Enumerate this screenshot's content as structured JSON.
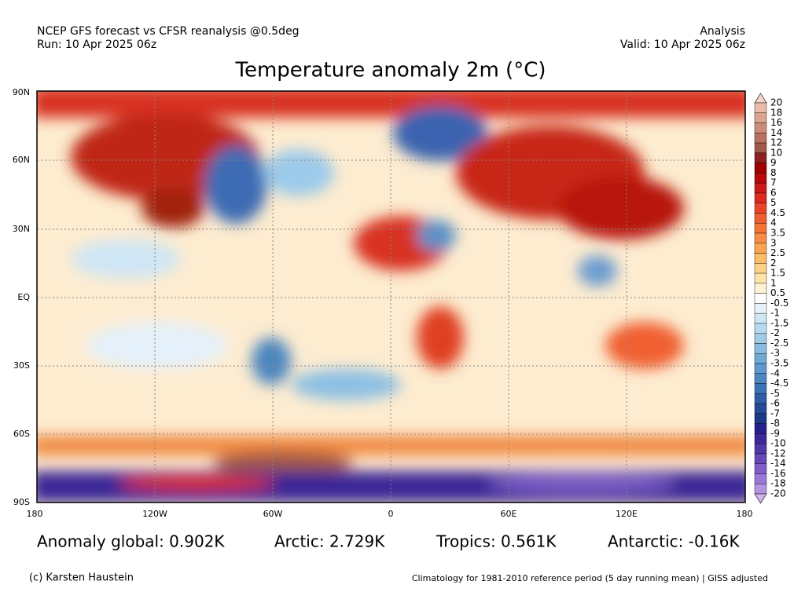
{
  "header": {
    "left": [
      "NCEP GFS forecast vs CFSR reanalysis @0.5deg",
      "Run: 10 Apr 2025 06z"
    ],
    "right": [
      "Analysis",
      "Valid: 10 Apr 2025 06z"
    ]
  },
  "title": "Temperature anomaly 2m (°C)",
  "map": {
    "lat_labels": [
      "90N",
      "60N",
      "30N",
      "EQ",
      "30S",
      "60S",
      "90S"
    ],
    "lon_labels": [
      "180",
      "120W",
      "60W",
      "0",
      "60E",
      "120E",
      "180"
    ]
  },
  "colorbar": {
    "labels": [
      20,
      18,
      16,
      14,
      12,
      10,
      9,
      8,
      7,
      6,
      5,
      4.5,
      4,
      3.5,
      3,
      2.5,
      2,
      1.5,
      1,
      0.5,
      -0.5,
      -1,
      -1.5,
      -2,
      -2.5,
      -3,
      -3.5,
      -4,
      -4.5,
      -5,
      -6,
      -7,
      -8,
      -9,
      -10,
      -12,
      -14,
      -16,
      -18,
      -20
    ],
    "colors": [
      "#f5d5c8",
      "#e8bca8",
      "#dba48f",
      "#cc8c78",
      "#b87060",
      "#a05848",
      "#8a2020",
      "#a00000",
      "#b80808",
      "#cc1818",
      "#dc2a20",
      "#e84428",
      "#f05c30",
      "#f47438",
      "#f88c44",
      "#faa452",
      "#fcbc68",
      "#fdd286",
      "#fee4a8",
      "#fff2d2",
      "#ffffff",
      "#e6f2fa",
      "#cfe6f5",
      "#b8daf0",
      "#a0cce8",
      "#88bce0",
      "#72aad6",
      "#5e98cc",
      "#4c86c0",
      "#3c72b4",
      "#2e5ea6",
      "#244a98",
      "#1c3888",
      "#28208a",
      "#3a2896",
      "#5038a8",
      "#6648b8",
      "#7e5ec8",
      "#9878d6",
      "#b294e2",
      "#ccb4ee"
    ]
  },
  "stats": [
    "Anomaly global: 0.902K",
    "Arctic: 2.729K",
    "Tropics: 0.561K",
    "Antarctic: -0.16K"
  ],
  "footer": {
    "left": "(c) Karsten Haustein",
    "right": "Climatology for 1981-2010 reference period (5 day running mean) | GISS adjusted"
  }
}
